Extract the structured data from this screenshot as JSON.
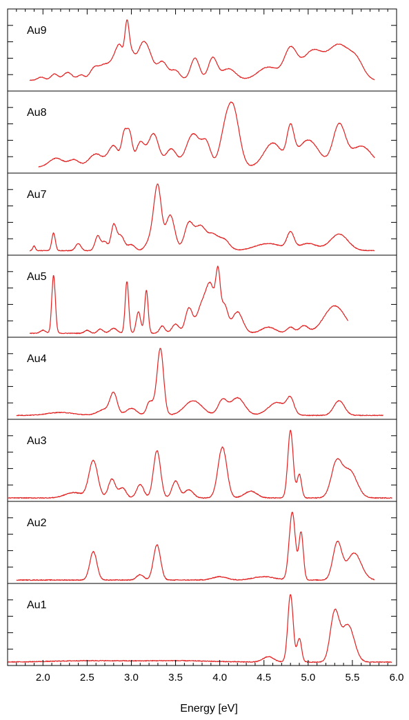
{
  "chart_data": {
    "type": "line",
    "xlabel": "Energy [eV]",
    "xlim": [
      1.6,
      6.0
    ],
    "x_ticks": [
      "2.0",
      "2.5",
      "3.0",
      "3.5",
      "4.0",
      "4.5",
      "5.0",
      "5.5",
      "6.0"
    ],
    "line_color": "#e02020",
    "panels": [
      {
        "label": "Au9",
        "x_range": [
          1.85,
          5.75
        ],
        "baseline": 0.15,
        "peaks": [
          [
            1.98,
            0.06,
            0.04
          ],
          [
            2.13,
            0.12,
            0.04
          ],
          [
            2.28,
            0.15,
            0.05
          ],
          [
            2.43,
            0.1,
            0.04
          ],
          [
            2.58,
            0.22,
            0.05
          ],
          [
            2.7,
            0.28,
            0.06
          ],
          [
            2.82,
            0.38,
            0.05
          ],
          [
            2.88,
            0.45,
            0.04
          ],
          [
            2.95,
            0.82,
            0.025
          ],
          [
            3.0,
            0.45,
            0.04
          ],
          [
            3.1,
            0.4,
            0.05
          ],
          [
            3.18,
            0.55,
            0.06
          ],
          [
            3.35,
            0.35,
            0.06
          ],
          [
            3.5,
            0.18,
            0.05
          ],
          [
            3.72,
            0.42,
            0.05
          ],
          [
            3.92,
            0.42,
            0.05
          ],
          [
            4.1,
            0.22,
            0.08
          ],
          [
            4.55,
            0.25,
            0.12
          ],
          [
            4.8,
            0.55,
            0.07
          ],
          [
            5.05,
            0.55,
            0.12
          ],
          [
            5.35,
            0.65,
            0.12
          ],
          [
            5.55,
            0.3,
            0.08
          ]
        ]
      },
      {
        "label": "Au8",
        "x_range": [
          1.95,
          5.75
        ],
        "baseline": 0.05,
        "peaks": [
          [
            2.15,
            0.15,
            0.08
          ],
          [
            2.35,
            0.12,
            0.06
          ],
          [
            2.6,
            0.22,
            0.08
          ],
          [
            2.8,
            0.35,
            0.06
          ],
          [
            2.92,
            0.5,
            0.03
          ],
          [
            2.98,
            0.52,
            0.03
          ],
          [
            3.1,
            0.4,
            0.05
          ],
          [
            3.25,
            0.55,
            0.06
          ],
          [
            3.45,
            0.3,
            0.06
          ],
          [
            3.7,
            0.55,
            0.08
          ],
          [
            3.85,
            0.35,
            0.05
          ],
          [
            4.15,
            0.95,
            0.07
          ],
          [
            4.05,
            0.4,
            0.06
          ],
          [
            4.6,
            0.4,
            0.1
          ],
          [
            4.8,
            0.55,
            0.04
          ],
          [
            5.0,
            0.45,
            0.12
          ],
          [
            5.35,
            0.68,
            0.07
          ],
          [
            5.6,
            0.35,
            0.12
          ]
        ]
      },
      {
        "label": "Au7",
        "x_range": [
          1.85,
          5.75
        ],
        "baseline": 0.03,
        "peaks": [
          [
            1.9,
            0.08,
            0.015
          ],
          [
            2.12,
            0.3,
            0.02
          ],
          [
            2.4,
            0.12,
            0.03
          ],
          [
            2.62,
            0.25,
            0.03
          ],
          [
            2.7,
            0.15,
            0.03
          ],
          [
            2.8,
            0.42,
            0.03
          ],
          [
            2.88,
            0.25,
            0.04
          ],
          [
            3.0,
            0.1,
            0.04
          ],
          [
            3.3,
            0.9,
            0.04
          ],
          [
            3.25,
            0.3,
            0.06
          ],
          [
            3.44,
            0.6,
            0.05
          ],
          [
            3.65,
            0.45,
            0.05
          ],
          [
            3.78,
            0.4,
            0.06
          ],
          [
            3.92,
            0.25,
            0.06
          ],
          [
            4.05,
            0.18,
            0.06
          ],
          [
            4.55,
            0.12,
            0.15
          ],
          [
            4.8,
            0.28,
            0.04
          ],
          [
            5.0,
            0.12,
            0.1
          ],
          [
            5.35,
            0.28,
            0.1
          ]
        ]
      },
      {
        "label": "Au5",
        "x_range": [
          1.85,
          5.45
        ],
        "baseline": 0.02,
        "peaks": [
          [
            2.0,
            0.05,
            0.03
          ],
          [
            2.12,
            0.95,
            0.02
          ],
          [
            2.5,
            0.05,
            0.03
          ],
          [
            2.65,
            0.07,
            0.03
          ],
          [
            2.8,
            0.08,
            0.04
          ],
          [
            2.95,
            0.85,
            0.02
          ],
          [
            3.08,
            0.35,
            0.025
          ],
          [
            3.17,
            0.7,
            0.02
          ],
          [
            3.35,
            0.12,
            0.03
          ],
          [
            3.5,
            0.15,
            0.04
          ],
          [
            3.65,
            0.4,
            0.04
          ],
          [
            3.8,
            0.45,
            0.06
          ],
          [
            3.9,
            0.7,
            0.05
          ],
          [
            3.98,
            0.8,
            0.025
          ],
          [
            4.05,
            0.45,
            0.04
          ],
          [
            4.2,
            0.35,
            0.06
          ],
          [
            4.55,
            0.1,
            0.08
          ],
          [
            4.8,
            0.1,
            0.04
          ],
          [
            4.95,
            0.12,
            0.05
          ],
          [
            5.3,
            0.45,
            0.12
          ]
        ]
      },
      {
        "label": "Au4",
        "x_range": [
          1.7,
          5.85
        ],
        "baseline": 0.02,
        "peaks": [
          [
            2.2,
            0.05,
            0.15
          ],
          [
            2.8,
            0.35,
            0.04
          ],
          [
            2.7,
            0.1,
            0.08
          ],
          [
            3.0,
            0.12,
            0.06
          ],
          [
            3.2,
            0.15,
            0.03
          ],
          [
            3.33,
            1.0,
            0.035
          ],
          [
            3.28,
            0.2,
            0.06
          ],
          [
            3.7,
            0.25,
            0.1
          ],
          [
            4.03,
            0.25,
            0.05
          ],
          [
            4.2,
            0.3,
            0.08
          ],
          [
            4.65,
            0.22,
            0.1
          ],
          [
            4.8,
            0.25,
            0.04
          ],
          [
            5.35,
            0.25,
            0.06
          ]
        ]
      },
      {
        "label": "Au3",
        "x_range": [
          1.6,
          5.95
        ],
        "baseline": 0.01,
        "peaks": [
          [
            2.35,
            0.08,
            0.1
          ],
          [
            2.57,
            0.55,
            0.05
          ],
          [
            2.78,
            0.28,
            0.04
          ],
          [
            2.9,
            0.15,
            0.04
          ],
          [
            3.1,
            0.2,
            0.04
          ],
          [
            3.29,
            0.7,
            0.04
          ],
          [
            3.5,
            0.25,
            0.04
          ],
          [
            3.65,
            0.12,
            0.05
          ],
          [
            4.03,
            0.75,
            0.05
          ],
          [
            4.35,
            0.1,
            0.07
          ],
          [
            4.8,
            1.0,
            0.03
          ],
          [
            4.9,
            0.35,
            0.025
          ],
          [
            5.32,
            0.5,
            0.06
          ],
          [
            5.47,
            0.4,
            0.08
          ]
        ]
      },
      {
        "label": "Au2",
        "x_range": [
          1.7,
          5.75
        ],
        "baseline": 0.01,
        "peaks": [
          [
            2.57,
            0.42,
            0.04
          ],
          [
            3.1,
            0.08,
            0.04
          ],
          [
            3.29,
            0.52,
            0.04
          ],
          [
            4.0,
            0.05,
            0.08
          ],
          [
            4.5,
            0.05,
            0.12
          ],
          [
            4.82,
            1.0,
            0.035
          ],
          [
            4.92,
            0.7,
            0.025
          ],
          [
            5.33,
            0.55,
            0.05
          ],
          [
            5.52,
            0.4,
            0.08
          ]
        ]
      },
      {
        "label": "Au1",
        "x_range": [
          1.6,
          5.95
        ],
        "baseline": 0.01,
        "peaks": [
          [
            2.5,
            0.02,
            0.4
          ],
          [
            3.5,
            0.02,
            0.4
          ],
          [
            4.55,
            0.08,
            0.06
          ],
          [
            4.8,
            1.0,
            0.03
          ],
          [
            4.9,
            0.35,
            0.025
          ],
          [
            5.3,
            0.72,
            0.05
          ],
          [
            5.45,
            0.55,
            0.07
          ]
        ]
      }
    ]
  }
}
